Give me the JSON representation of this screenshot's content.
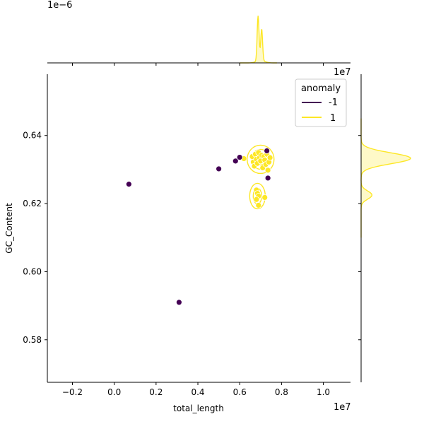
{
  "chart_data": {
    "type": "scatter",
    "xlabel": "total_length",
    "ylabel": "GC_Content",
    "x_offset_label": "1e7",
    "y_offset_label": "1e7",
    "top_marginal_offset_label": "1e−6",
    "x_scale": 10000000,
    "xlim": [
      -0.32,
      1.13
    ],
    "ylim": [
      0.5675,
      0.658
    ],
    "x_ticks": [
      -0.2,
      0.0,
      0.2,
      0.4,
      0.6,
      0.8,
      1.0
    ],
    "x_tick_labels": [
      "−0.2",
      "0.0",
      "0.2",
      "0.4",
      "0.6",
      "0.8",
      "1.0"
    ],
    "y_ticks": [
      0.58,
      0.6,
      0.62,
      0.64
    ],
    "y_tick_labels": [
      "0.58",
      "0.60",
      "0.62",
      "0.64"
    ],
    "grid": false,
    "legend": {
      "title": "anomaly",
      "placement": "top-right",
      "entries": [
        {
          "label": "-1",
          "color": "#440154"
        },
        {
          "label": "1",
          "color": "#fde725"
        }
      ]
    },
    "series": [
      {
        "name": "-1",
        "color": "#440154",
        "points": [
          {
            "x": 0.07,
            "y": 0.6257
          },
          {
            "x": 0.31,
            "y": 0.591
          },
          {
            "x": 0.5,
            "y": 0.6302
          },
          {
            "x": 0.58,
            "y": 0.6325
          },
          {
            "x": 0.6,
            "y": 0.6336
          },
          {
            "x": 0.73,
            "y": 0.6355
          },
          {
            "x": 0.735,
            "y": 0.6275
          }
        ]
      },
      {
        "name": "1",
        "color": "#fde725",
        "points": [
          {
            "x": 0.62,
            "y": 0.6332
          },
          {
            "x": 0.66,
            "y": 0.6338
          },
          {
            "x": 0.665,
            "y": 0.6322
          },
          {
            "x": 0.67,
            "y": 0.631
          },
          {
            "x": 0.675,
            "y": 0.6345
          },
          {
            "x": 0.68,
            "y": 0.633
          },
          {
            "x": 0.685,
            "y": 0.6318
          },
          {
            "x": 0.69,
            "y": 0.635
          },
          {
            "x": 0.695,
            "y": 0.6335
          },
          {
            "x": 0.7,
            "y": 0.6325
          },
          {
            "x": 0.705,
            "y": 0.6342
          },
          {
            "x": 0.71,
            "y": 0.6305
          },
          {
            "x": 0.715,
            "y": 0.6338
          },
          {
            "x": 0.72,
            "y": 0.6328
          },
          {
            "x": 0.725,
            "y": 0.6315
          },
          {
            "x": 0.73,
            "y": 0.6345
          },
          {
            "x": 0.735,
            "y": 0.6298
          },
          {
            "x": 0.74,
            "y": 0.6322
          },
          {
            "x": 0.745,
            "y": 0.6335
          },
          {
            "x": 0.68,
            "y": 0.624
          },
          {
            "x": 0.685,
            "y": 0.623
          },
          {
            "x": 0.69,
            "y": 0.6222
          },
          {
            "x": 0.68,
            "y": 0.6212
          },
          {
            "x": 0.69,
            "y": 0.6195
          },
          {
            "x": 0.72,
            "y": 0.6218
          }
        ],
        "density_center_a": {
          "x": 0.7,
          "y": 0.633
        },
        "density_center_b": {
          "x": 0.685,
          "y": 0.6222
        }
      }
    ]
  }
}
